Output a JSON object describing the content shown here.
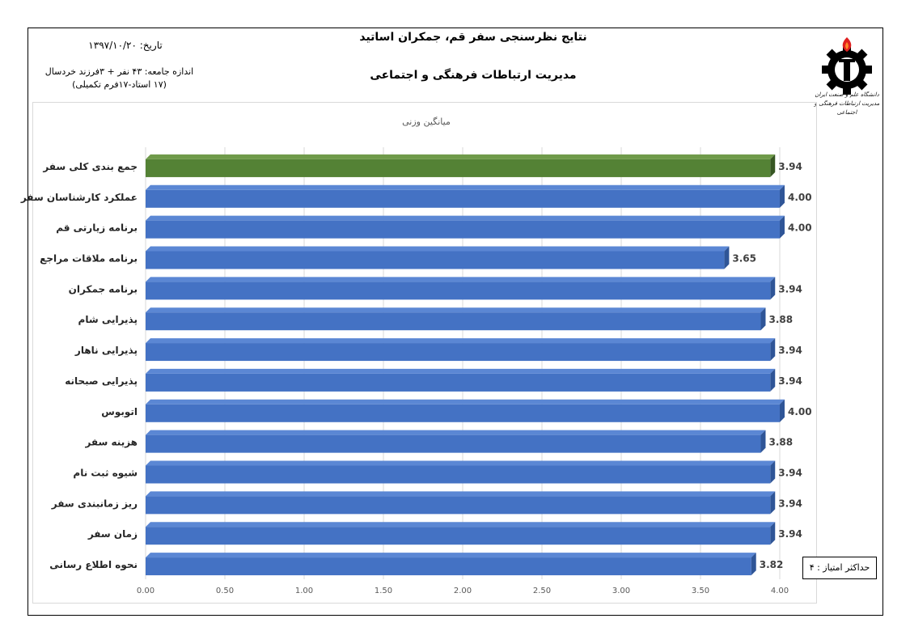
{
  "header": {
    "title": "نتایج نظرسنجی سفر قم، جمکران اساتید",
    "subtitle": "مدیریت ارتباطات فرهنگی و اجتماعی",
    "date_label": "تاریخ: ۱۳۹۷/۱۰/۲۰",
    "sample_line1": "اندازه جامعه: ۴۳ نفر + ۳فرزند خردسال",
    "sample_line2": "(۱۷ استاد-۱۷فرم تکمیلی)",
    "logo_text_line1": "دانشگاه علم و صنعت ایران",
    "logo_text_line2": "مدیریت ارتباطات فرهنگی و اجتماعی"
  },
  "max_score_label": "حداکثر امتیاز : ۴",
  "chart_data": {
    "type": "bar",
    "orientation": "horizontal",
    "title": "میانگین وزنی",
    "categories": [
      "جمع بندی کلی سفر",
      "عملکرد کارشناسان سفر",
      "برنامه زیارتی قم",
      "برنامه ملاقات مراجع",
      "برنامه جمکران",
      "پذیرایی شام",
      "پذیرایی ناهار",
      "پذیرایی صبحانه",
      "اتوبوس",
      "هزینه سفر",
      "شیوه ثبت نام",
      "ریز زمانبندی سفر",
      "زمان سفر",
      "نحوه اطلاع رسانی"
    ],
    "values": [
      3.94,
      4.0,
      4.0,
      3.65,
      3.94,
      3.88,
      3.94,
      3.94,
      4.0,
      3.88,
      3.94,
      3.94,
      3.94,
      3.82
    ],
    "value_labels": [
      "3.94",
      "4.00",
      "4.00",
      "3.65",
      "3.94",
      "3.88",
      "3.94",
      "3.94",
      "4.00",
      "3.88",
      "3.94",
      "3.94",
      "3.94",
      "3.82"
    ],
    "x_ticks": [
      "0.00",
      "0.50",
      "1.00",
      "1.50",
      "2.00",
      "2.50",
      "3.00",
      "3.50",
      "4.00"
    ],
    "xlim": [
      0,
      4
    ],
    "grid": true,
    "colors": {
      "highlight": "#548235",
      "bar": "#4472c4"
    }
  }
}
